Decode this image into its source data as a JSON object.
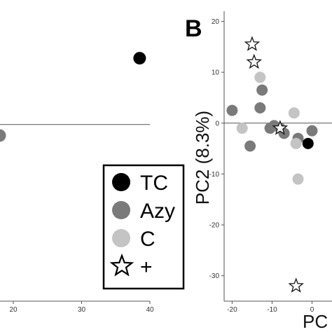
{
  "colors": {
    "TC": "#000000",
    "Azy": "#7a7a7a",
    "C": "#c4c4c4",
    "plus_stroke": "#111111",
    "axis": "#555555"
  },
  "chart_data": [
    {
      "type": "scatter",
      "panel": "",
      "xlim": [
        0,
        40
      ],
      "xticks": [
        "20",
        "30",
        "40"
      ],
      "baseline_y": 0,
      "series": [
        {
          "name": "TC",
          "marker": "circle",
          "points": [
            [
              38.5,
              12
            ]
          ]
        },
        {
          "name": "Azy",
          "marker": "circle",
          "points": [
            [
              18,
              -2
            ]
          ]
        }
      ],
      "legend": {
        "placement": "bottom-right",
        "entries": [
          {
            "label": "TC",
            "marker": "circle",
            "color": "#000000"
          },
          {
            "label": "Azy",
            "marker": "circle",
            "color": "#7a7a7a"
          },
          {
            "label": "C",
            "marker": "circle",
            "color": "#c4c4c4"
          },
          {
            "label": "+",
            "marker": "star",
            "color": "#ffffff"
          }
        ]
      }
    },
    {
      "type": "scatter",
      "panel": "B",
      "ylabel": "PC2 (8.3%)",
      "xlabel": "PC",
      "xlim": [
        -22,
        5
      ],
      "ylim": [
        -35,
        22
      ],
      "xticks": [
        "-20",
        "-10",
        "0"
      ],
      "yticks": [
        "20",
        "10",
        "0",
        "-10",
        "-20",
        "-30"
      ],
      "series": [
        {
          "name": "TC",
          "marker": "circle",
          "points": [
            [
              -1,
              -4
            ]
          ]
        },
        {
          "name": "Azy",
          "marker": "circle",
          "points": [
            [
              -20,
              2.5
            ],
            [
              -12.5,
              6.5
            ],
            [
              -13,
              3
            ],
            [
              -15.5,
              -4.5
            ],
            [
              -10.5,
              -1
            ],
            [
              -9.5,
              -0.5
            ],
            [
              -8,
              -1
            ],
            [
              -7,
              -2
            ],
            [
              -3.5,
              -3
            ],
            [
              0,
              -1.5
            ]
          ]
        },
        {
          "name": "C",
          "marker": "circle",
          "points": [
            [
              -13,
              9
            ],
            [
              -17.5,
              -1
            ],
            [
              -4.5,
              2
            ],
            [
              -4,
              -4
            ],
            [
              -3.5,
              -11
            ]
          ]
        },
        {
          "name": "+",
          "marker": "star",
          "points": [
            [
              -15,
              15.5
            ],
            [
              -14.5,
              12
            ],
            [
              -8,
              -1
            ],
            [
              -4,
              -32
            ]
          ]
        }
      ]
    }
  ]
}
